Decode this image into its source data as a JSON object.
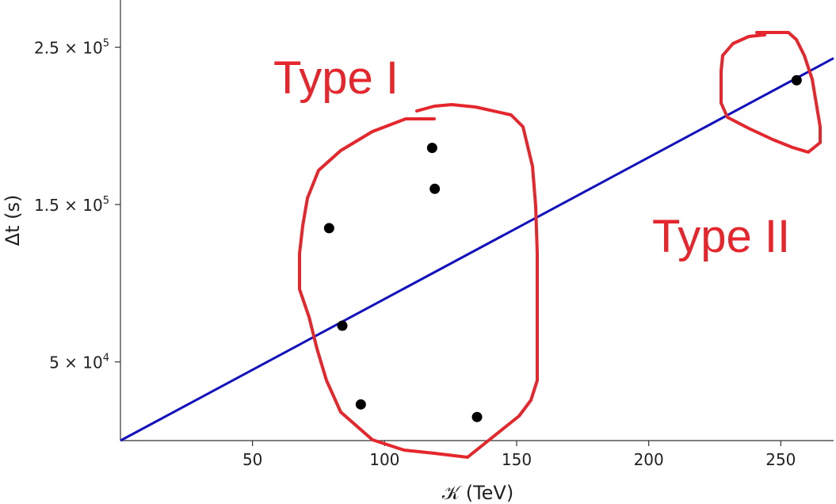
{
  "chart_data": {
    "type": "scatter",
    "xlabel": "𝒦 (TeV)",
    "ylabel": "Δt (s)",
    "xlim": [
      0,
      270
    ],
    "ylim": [
      0,
      280000
    ],
    "x_ticks": [
      50,
      100,
      150,
      200,
      250
    ],
    "y_ticks": [
      {
        "value": 50000,
        "mantissa": "5",
        "exp": "4"
      },
      {
        "value": 150000,
        "mantissa": "1.5",
        "exp": "5"
      },
      {
        "value": 250000,
        "mantissa": "2.5",
        "exp": "5"
      }
    ],
    "points": [
      {
        "x": 79,
        "y": 135000
      },
      {
        "x": 84,
        "y": 73000
      },
      {
        "x": 91,
        "y": 23000
      },
      {
        "x": 118,
        "y": 186000
      },
      {
        "x": 119,
        "y": 160000
      },
      {
        "x": 135,
        "y": 15000
      },
      {
        "x": 256,
        "y": 229000
      }
    ],
    "fit_line": {
      "x": [
        0,
        270
      ],
      "y": [
        0,
        243000
      ],
      "color": "#1010c0"
    },
    "point_color": "#000000",
    "annotations": [
      {
        "text": "Type I",
        "color": "#e5262c"
      },
      {
        "text": "Type II",
        "color": "#e5262c"
      }
    ],
    "grid": false,
    "legend": "none"
  }
}
